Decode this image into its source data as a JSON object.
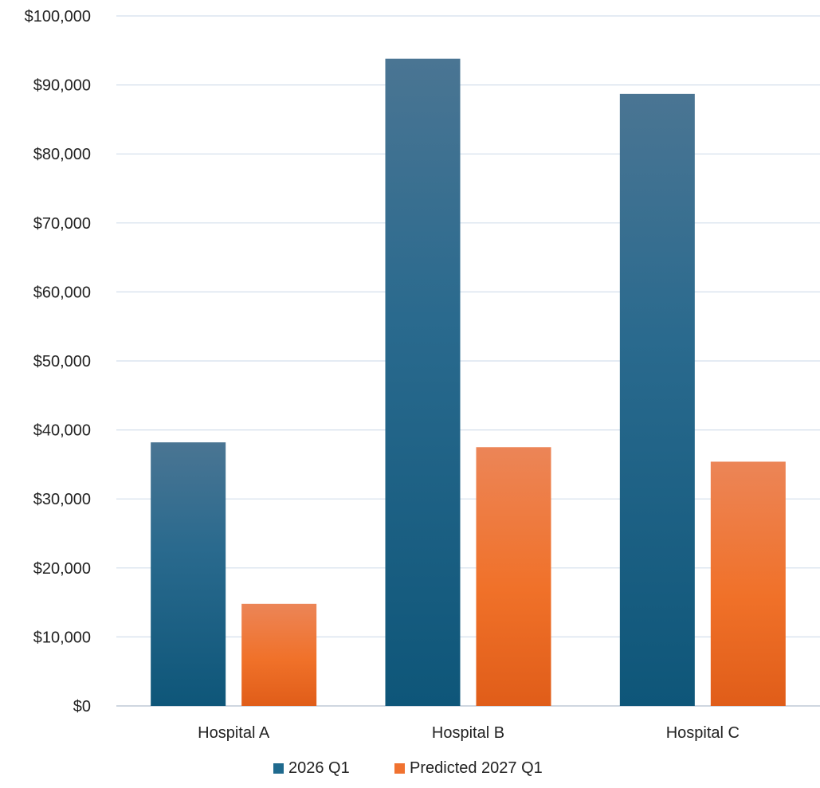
{
  "chart_data": {
    "type": "bar",
    "title": "",
    "xlabel": "",
    "ylabel": "",
    "categories": [
      "Hospital A",
      "Hospital B",
      "Hospital C"
    ],
    "series": [
      {
        "name": "2026 Q1",
        "values": [
          38200,
          93800,
          88700
        ],
        "color": "#1F6A8E"
      },
      {
        "name": "Predicted 2027 Q1",
        "values": [
          14800,
          37500,
          35400
        ],
        "color": "#F07230"
      }
    ],
    "ylim": [
      0,
      100000
    ],
    "yticks": [
      0,
      10000,
      20000,
      30000,
      40000,
      50000,
      60000,
      70000,
      80000,
      90000,
      100000
    ],
    "ytick_labels": [
      "$0",
      "$10,000",
      "$20,000",
      "$30,000",
      "$40,000",
      "$50,000",
      "$60,000",
      "$70,000",
      "$80,000",
      "$90,000",
      "$100,000"
    ],
    "grid": true,
    "legend_position": "bottom"
  }
}
